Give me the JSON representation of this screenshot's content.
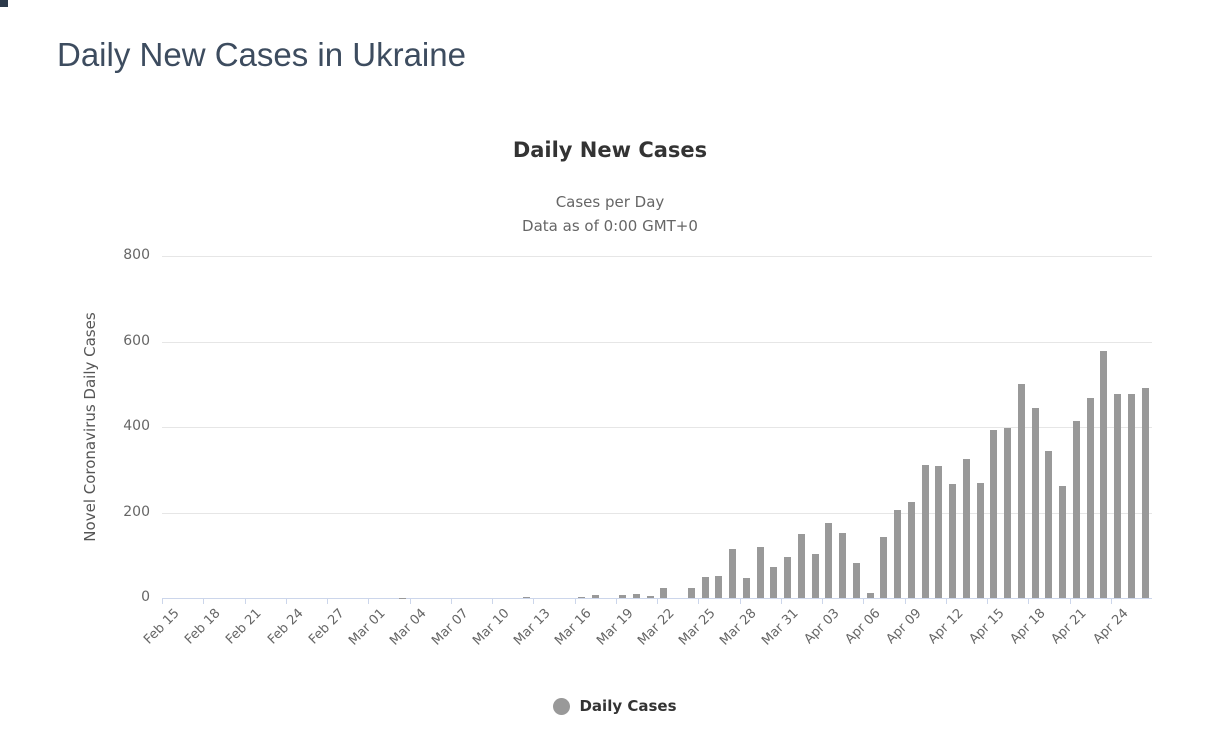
{
  "page": {
    "title": "Daily New Cases in Ukraine"
  },
  "chart": {
    "title": "Daily New Cases",
    "subtitle_line1": "Cases per Day",
    "subtitle_line2": "Data as of 0:00 GMT+0",
    "y_axis_title": "Novel Coronavirus Daily Cases",
    "legend_label": "Daily Cases"
  },
  "colors": {
    "bar": "#999999",
    "grid": "#e6e6e6",
    "axis_line": "#ccd6eb",
    "tick_label": "#666666",
    "chart_title": "#333333",
    "page_title": "#3d4c5f",
    "legend_marker": "#999999"
  },
  "chart_data": {
    "type": "bar",
    "title": "Daily New Cases",
    "subtitle": "Cases per Day — Data as of 0:00 GMT+0",
    "xlabel": "",
    "ylabel": "Novel Coronavirus Daily Cases",
    "ylim": [
      0,
      800
    ],
    "yticks": [
      0,
      200,
      400,
      600,
      800
    ],
    "grid": true,
    "legend_position": "bottom",
    "series_name": "Daily Cases",
    "xtick_step": 3,
    "xtick_labels": [
      "Feb 15",
      "Feb 18",
      "Feb 21",
      "Feb 24",
      "Feb 27",
      "Mar 01",
      "Mar 04",
      "Mar 07",
      "Mar 10",
      "Mar 13",
      "Mar 16",
      "Mar 19",
      "Mar 22",
      "Mar 25",
      "Mar 28",
      "Mar 31",
      "Apr 03",
      "Apr 06",
      "Apr 09",
      "Apr 12",
      "Apr 15",
      "Apr 18",
      "Apr 21",
      "Apr 24"
    ],
    "categories": [
      "Feb 15",
      "Feb 16",
      "Feb 17",
      "Feb 18",
      "Feb 19",
      "Feb 20",
      "Feb 21",
      "Feb 22",
      "Feb 23",
      "Feb 24",
      "Feb 25",
      "Feb 26",
      "Feb 27",
      "Feb 28",
      "Feb 29",
      "Mar 01",
      "Mar 02",
      "Mar 03",
      "Mar 04",
      "Mar 05",
      "Mar 06",
      "Mar 07",
      "Mar 08",
      "Mar 09",
      "Mar 10",
      "Mar 11",
      "Mar 12",
      "Mar 13",
      "Mar 14",
      "Mar 15",
      "Mar 16",
      "Mar 17",
      "Mar 18",
      "Mar 19",
      "Mar 20",
      "Mar 21",
      "Mar 22",
      "Mar 23",
      "Mar 24",
      "Mar 25",
      "Mar 26",
      "Mar 27",
      "Mar 28",
      "Mar 29",
      "Mar 30",
      "Mar 31",
      "Apr 01",
      "Apr 02",
      "Apr 03",
      "Apr 04",
      "Apr 05",
      "Apr 06",
      "Apr 07",
      "Apr 08",
      "Apr 09",
      "Apr 10",
      "Apr 11",
      "Apr 12",
      "Apr 13",
      "Apr 14",
      "Apr 15",
      "Apr 16",
      "Apr 17",
      "Apr 18",
      "Apr 19",
      "Apr 20",
      "Apr 21",
      "Apr 22",
      "Apr 23",
      "Apr 24",
      "Apr 25",
      "Apr 26"
    ],
    "values": [
      0,
      0,
      0,
      0,
      0,
      0,
      0,
      0,
      0,
      0,
      0,
      0,
      0,
      0,
      0,
      0,
      0,
      1,
      0,
      0,
      0,
      0,
      0,
      0,
      0,
      0,
      2,
      0,
      0,
      0,
      2,
      6,
      0,
      7,
      10,
      5,
      23,
      0,
      24,
      48,
      51,
      114,
      46,
      119,
      73,
      97,
      149,
      103,
      175,
      153,
      83,
      11,
      143,
      206,
      224,
      311,
      308,
      266,
      325,
      270,
      392,
      397,
      501,
      444,
      343,
      261,
      415,
      467,
      578,
      477,
      478,
      492
    ]
  }
}
